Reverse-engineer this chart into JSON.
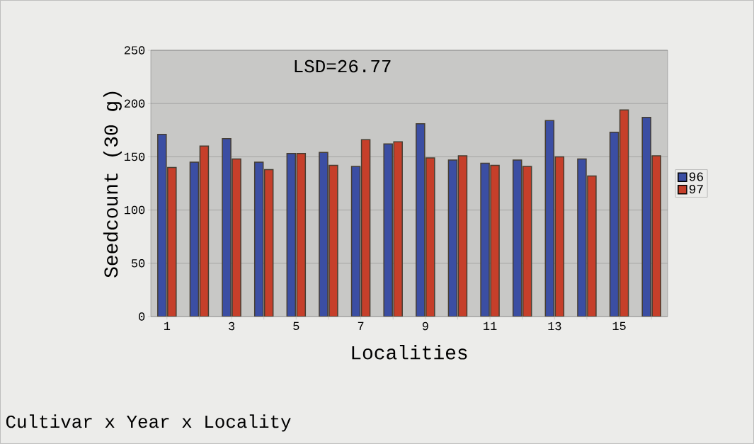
{
  "chart_data": {
    "type": "bar",
    "categories": [
      "1",
      null,
      "3",
      null,
      "5",
      null,
      "7",
      null,
      "9",
      null,
      "11",
      null,
      "13",
      null,
      "15",
      null
    ],
    "series": [
      {
        "name": "96",
        "color": "#3b4ea3",
        "values": [
          171,
          145,
          167,
          145,
          153,
          154,
          141,
          162,
          181,
          147,
          144,
          147,
          184,
          148,
          173,
          187
        ]
      },
      {
        "name": "97",
        "color": "#c63f2a",
        "values": [
          140,
          160,
          148,
          138,
          153,
          142,
          166,
          164,
          149,
          151,
          142,
          141,
          150,
          132,
          194,
          151
        ]
      }
    ],
    "xlabel": "Localities",
    "ylabel": "Seedcount (30 g)",
    "ylim": [
      0,
      250
    ],
    "yticks": [
      0,
      50,
      100,
      150,
      200,
      250
    ],
    "grid": "y",
    "legend": "right",
    "annotations": [
      "LSD=26.77",
      "Cultivar x Year x Locality"
    ]
  }
}
